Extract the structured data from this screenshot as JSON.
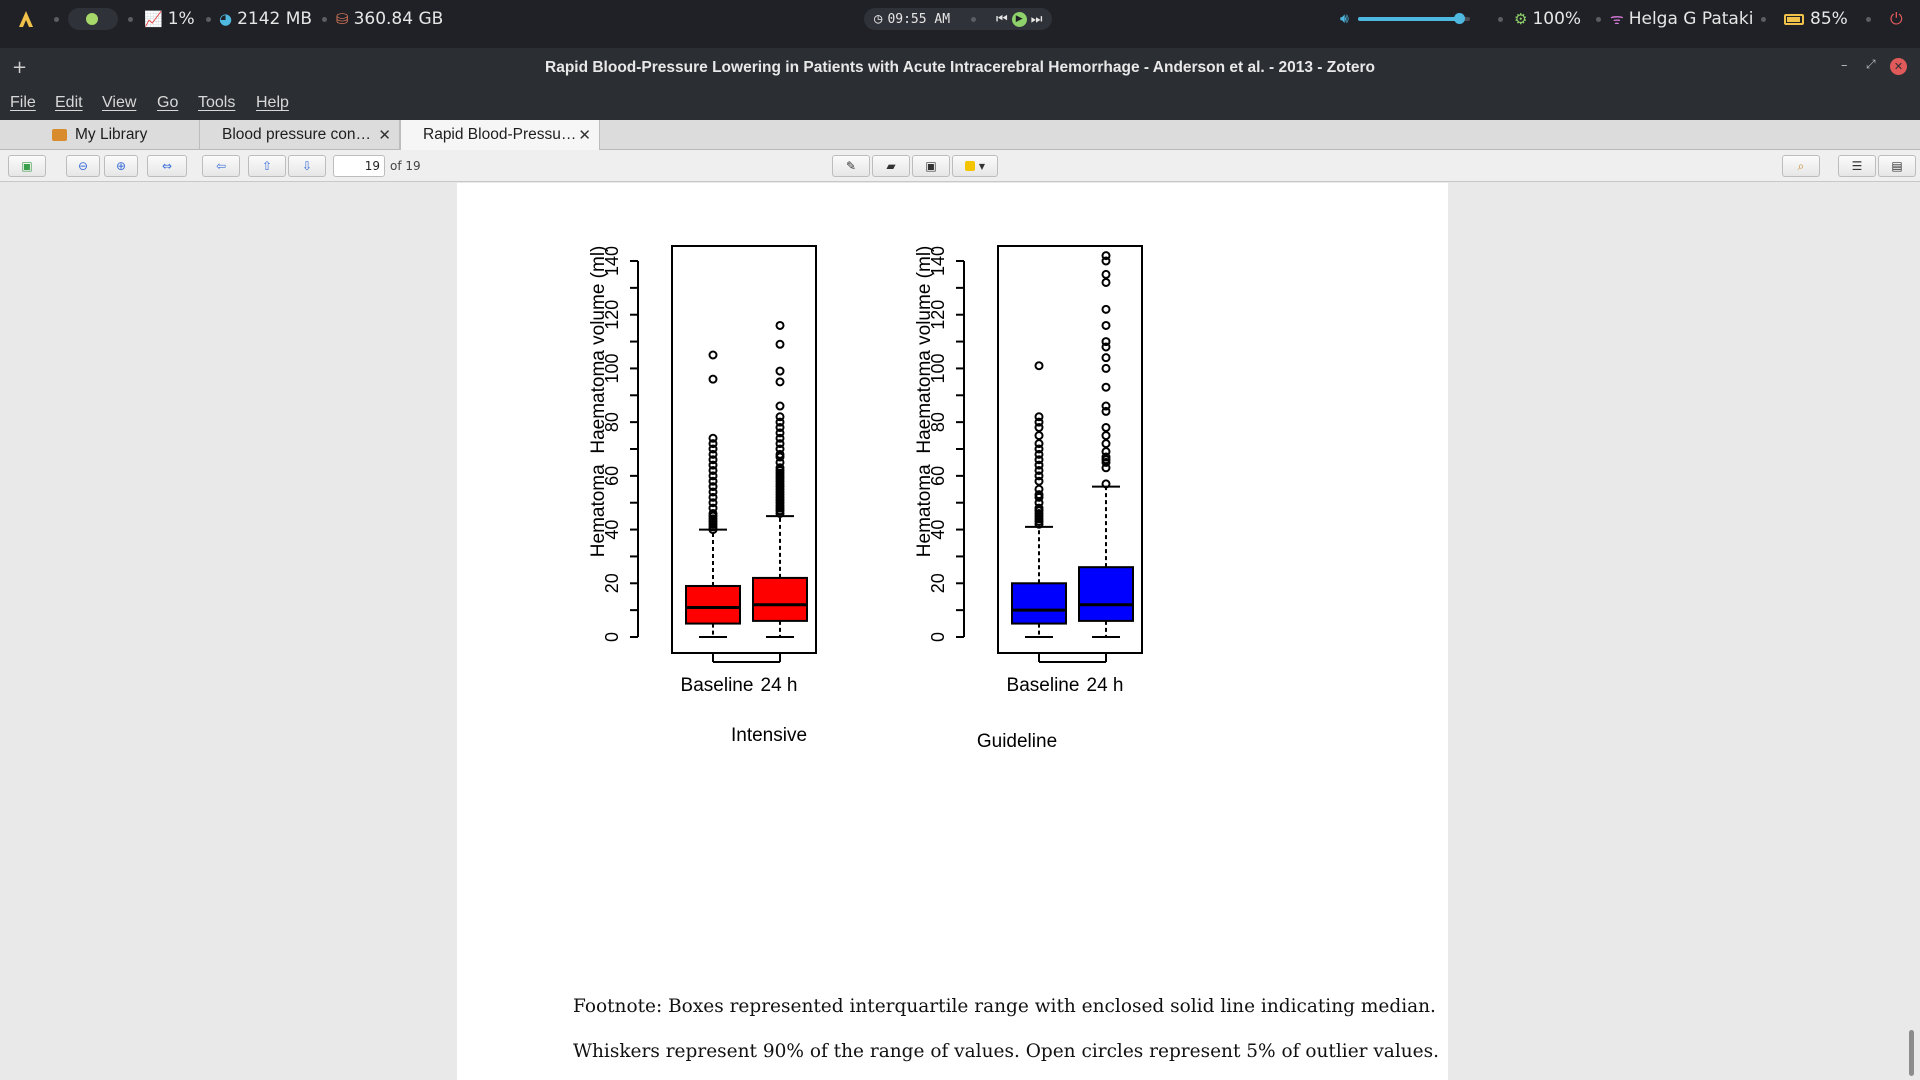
{
  "topbar": {
    "cpu": "1%",
    "memory": "2142 MB",
    "disk": "360.84 GB",
    "clock": "09:55 AM",
    "brightness": "100%",
    "user": "Helga G Pataki",
    "battery": "85%",
    "volume_level": 0.9,
    "icons": [
      "arch-logo-icon",
      "chart-icon",
      "memory-icon",
      "disk-icon",
      "clock-icon",
      "prev-track-icon",
      "play-icon",
      "next-track-icon",
      "volume-icon",
      "brightness-icon",
      "wifi-icon",
      "battery-icon",
      "power-icon"
    ]
  },
  "window": {
    "title": "Rapid Blood-Pressure Lowering in Patients with Acute Intracerebral Hemorrhage - Anderson et al. - 2013 - Zotero",
    "new_tab": "+",
    "controls": [
      "–",
      "⤢",
      "✕"
    ]
  },
  "menu": [
    "File",
    "Edit",
    "View",
    "Go",
    "Tools",
    "Help"
  ],
  "tabs": [
    {
      "label": "My Library"
    },
    {
      "label": "Blood pressure con…"
    },
    {
      "label": "Rapid Blood-Pressu…"
    }
  ],
  "toolbar": {
    "page_current": "19",
    "page_total_label": "of 19",
    "highlight_color": "#f5c400"
  },
  "figure": {
    "panels": [
      {
        "name": "Intensive",
        "color": "#ff0000",
        "ylabel_parts": [
          "Hematoma",
          "Haematoma volume (ml)"
        ],
        "xticks": [
          "Baseline",
          "24 h"
        ]
      },
      {
        "name": "Guideline",
        "color": "#0000ff",
        "ylabel_parts": [
          "Hematoma",
          "Haematoma volume (ml)"
        ],
        "xticks": [
          "Baseline",
          "24 h"
        ]
      }
    ],
    "yticks": [
      "0",
      "20",
      "40",
      "60",
      "80",
      "100",
      "120",
      "140"
    ]
  },
  "chart_data": [
    {
      "type": "boxplot",
      "title": "Intensive",
      "ylabel": "Haematoma volume (ml)",
      "categories": [
        "Baseline",
        "24 h"
      ],
      "ylim": [
        0,
        150
      ],
      "boxes": [
        {
          "whisker_low": 0,
          "q1": 5,
          "median": 11,
          "q3": 19,
          "whisker_high": 40,
          "outliers": [
            40,
            41,
            42,
            43,
            44,
            45,
            46,
            48,
            50,
            52,
            54,
            56,
            58,
            60,
            62,
            64,
            66,
            68,
            70,
            72,
            74,
            96,
            105
          ]
        },
        {
          "whisker_low": 0,
          "q1": 6,
          "median": 12,
          "q3": 22,
          "whisker_high": 45,
          "outliers": [
            46,
            47,
            48,
            49,
            50,
            51,
            52,
            53,
            54,
            55,
            56,
            57,
            58,
            59,
            60,
            61,
            62,
            63,
            65,
            67,
            68,
            70,
            72,
            74,
            76,
            78,
            80,
            82,
            86,
            95,
            99,
            109,
            116
          ]
        }
      ]
    },
    {
      "type": "boxplot",
      "title": "Guideline",
      "ylabel": "Haematoma volume (ml)",
      "categories": [
        "Baseline",
        "24 h"
      ],
      "ylim": [
        0,
        150
      ],
      "boxes": [
        {
          "whisker_low": 0,
          "q1": 5,
          "median": 10,
          "q3": 20,
          "whisker_high": 41,
          "outliers": [
            42,
            43,
            44,
            45,
            46,
            47,
            48,
            50,
            52,
            53,
            55,
            58,
            60,
            62,
            64,
            66,
            68,
            70,
            72,
            75,
            78,
            80,
            82,
            101
          ]
        },
        {
          "whisker_low": 0,
          "q1": 6,
          "median": 12,
          "q3": 26,
          "whisker_high": 56,
          "outliers": [
            57,
            63,
            65,
            66,
            67,
            69,
            72,
            75,
            78,
            84,
            86,
            93,
            100,
            104,
            108,
            110,
            116,
            122,
            132,
            135,
            140,
            142
          ]
        }
      ]
    }
  ],
  "footnote": {
    "line1": "Footnote: Boxes represented interquartile range with enclosed solid line indicating median.",
    "line2": "Whiskers represent 90% of the range of values.  Open circles represent 5% of outlier values."
  }
}
